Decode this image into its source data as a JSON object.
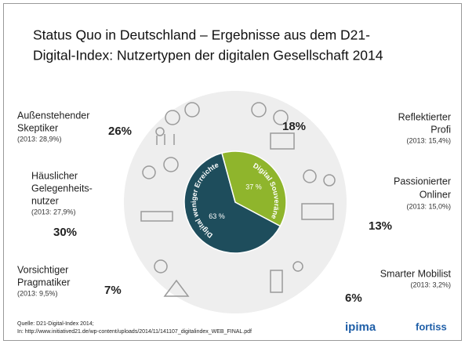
{
  "title_lines": [
    "Status Quo in Deutschland – Ergebnisse aus dem D21-",
    "Digital-Index: Nutzertypen der digitalen Gesellschaft 2014"
  ],
  "chart_data": {
    "type": "pie",
    "categories": [
      "Digital weniger Erreichte",
      "Digital Souveräne"
    ],
    "values": [
      63,
      37
    ],
    "value_labels": [
      "63 %",
      "37 %"
    ],
    "colors": [
      "#1e4d5c",
      "#8fb52c"
    ]
  },
  "user_types": [
    {
      "label": [
        "Außenstehender",
        "Skeptiker"
      ],
      "share": "26%",
      "previous": "(2013: 28,9%)"
    },
    {
      "label": [
        "Häuslicher",
        "Gelegenheits-",
        "nutzer"
      ],
      "share": "30%",
      "previous": "(2013: 27,9%)"
    },
    {
      "label": [
        "Vorsichtiger",
        "Pragmatiker"
      ],
      "share": "7%",
      "previous": "(2013: 9,5%)"
    },
    {
      "label": [
        "Reflektierter",
        "Profi"
      ],
      "share": "18%",
      "previous": "(2013: 15,4%)"
    },
    {
      "label": [
        "Passionierter",
        "Onliner"
      ],
      "share": "13%",
      "previous": "(2013: 15,0%)"
    },
    {
      "label": [
        "Smarter Mobilist"
      ],
      "share": "6%",
      "previous": "(2013: 3,2%)"
    }
  ],
  "source": [
    "Quelle: D21-Digital-Index 2014;",
    "In: http://www.initiatived21.de/wp-content/uploads/2014/11/141107_digitalindex_WEB_FINAL.pdf"
  ],
  "logos": [
    "ipima",
    "fortiss"
  ]
}
